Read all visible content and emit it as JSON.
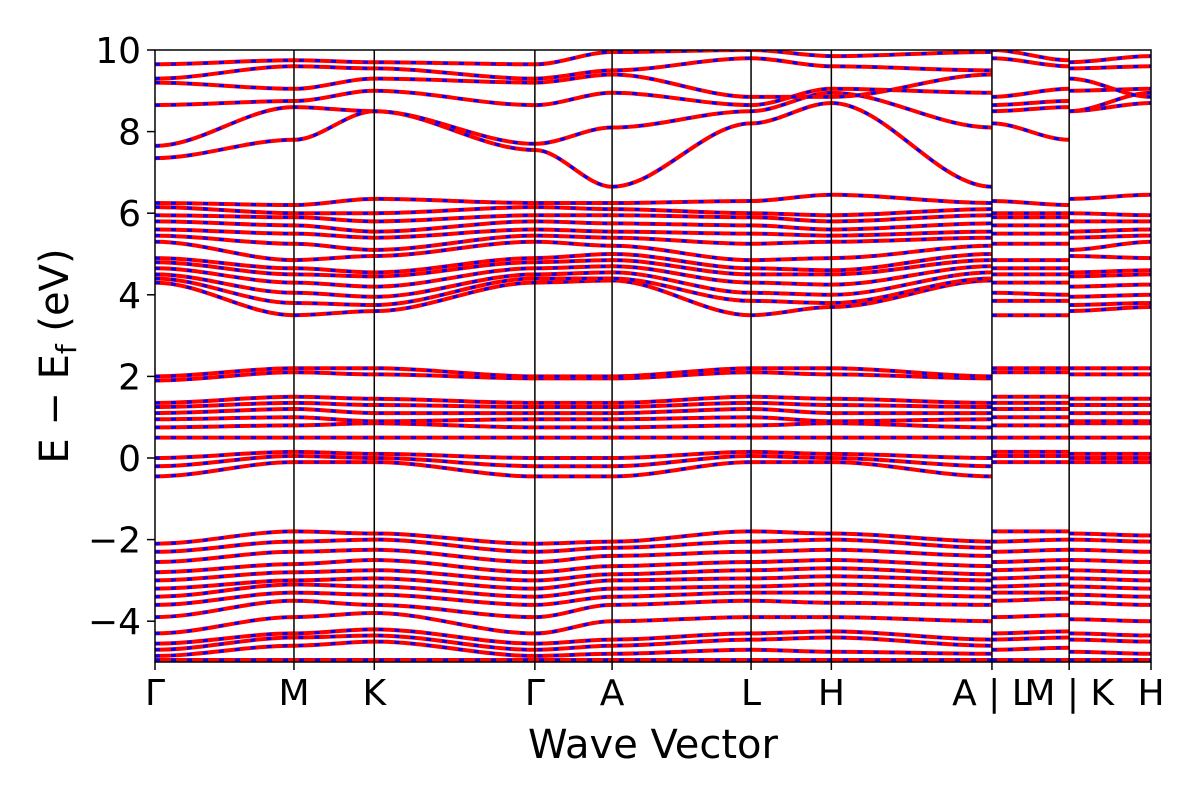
{
  "chart_data": {
    "type": "line",
    "xlabel": "Wave Vector",
    "ylabel": "E − E",
    "ylabel_sub": "f",
    "ylabel_unit": " (eV)",
    "ylim": [
      -5,
      10
    ],
    "yticks": [
      -4,
      -2,
      0,
      2,
      4,
      6,
      8,
      10
    ],
    "ytick_labels": [
      "−4",
      "−2",
      "0",
      "2",
      "4",
      "6",
      "8",
      "10"
    ],
    "xlim": [
      0,
      6.45
    ],
    "kpath_ticks": [
      0,
      0.9,
      1.42,
      2.46,
      2.96,
      3.86,
      4.38,
      5.42,
      5.92,
      6.45
    ],
    "kpath_labels": [
      "Γ",
      "M",
      "K",
      "Γ",
      "A",
      "L",
      "H",
      "A | L",
      "M | K",
      "H"
    ],
    "segment_breaks": [
      5.42,
      5.92
    ],
    "series": [
      {
        "color": "#ff0000",
        "style": "solid"
      },
      {
        "color": "#0000ff",
        "style": "dashed"
      }
    ],
    "bands": {
      "labels": [
        "Γ",
        "M",
        "K",
        "Γ",
        "A",
        "L",
        "H",
        "A",
        "L",
        "M",
        "K",
        "H"
      ],
      "values": [
        [
          -4.95,
          -4.95,
          -4.95,
          -4.95,
          -4.95,
          -4.95,
          -4.95,
          -4.95,
          -4.95,
          -4.95,
          -4.95,
          -4.95
        ],
        [
          -4.85,
          -4.6,
          -4.5,
          -4.85,
          -4.8,
          -4.7,
          -4.75,
          -4.8,
          -4.7,
          -4.65,
          -4.75,
          -4.8
        ],
        [
          -4.7,
          -4.4,
          -4.35,
          -4.7,
          -4.6,
          -4.45,
          -4.4,
          -4.6,
          -4.45,
          -4.4,
          -4.45,
          -4.5
        ],
        [
          -4.55,
          -4.3,
          -4.2,
          -4.55,
          -4.45,
          -4.3,
          -4.25,
          -4.45,
          -4.3,
          -4.25,
          -4.3,
          -4.35
        ],
        [
          -4.3,
          -3.9,
          -3.8,
          -4.3,
          -4.0,
          -3.9,
          -3.9,
          -4.0,
          -3.9,
          -3.85,
          -3.95,
          -4.0
        ],
        [
          -3.9,
          -3.5,
          -3.6,
          -3.9,
          -3.6,
          -3.5,
          -3.55,
          -3.6,
          -3.5,
          -3.45,
          -3.55,
          -3.6
        ],
        [
          -3.6,
          -3.3,
          -3.35,
          -3.6,
          -3.4,
          -3.3,
          -3.3,
          -3.4,
          -3.3,
          -3.3,
          -3.35,
          -3.4
        ],
        [
          -3.4,
          -3.1,
          -3.15,
          -3.4,
          -3.2,
          -3.15,
          -3.1,
          -3.2,
          -3.15,
          -3.1,
          -3.15,
          -3.2
        ],
        [
          -3.2,
          -3.0,
          -2.95,
          -3.2,
          -3.0,
          -2.95,
          -2.9,
          -3.0,
          -2.95,
          -2.9,
          -2.95,
          -3.0
        ],
        [
          -3.0,
          -2.8,
          -2.75,
          -3.0,
          -2.85,
          -2.75,
          -2.7,
          -2.85,
          -2.75,
          -2.7,
          -2.75,
          -2.8
        ],
        [
          -2.8,
          -2.6,
          -2.5,
          -2.8,
          -2.65,
          -2.55,
          -2.5,
          -2.65,
          -2.55,
          -2.5,
          -2.5,
          -2.55
        ],
        [
          -2.55,
          -2.3,
          -2.25,
          -2.55,
          -2.4,
          -2.3,
          -2.25,
          -2.4,
          -2.3,
          -2.25,
          -2.25,
          -2.3
        ],
        [
          -2.3,
          -2.05,
          -2.0,
          -2.3,
          -2.2,
          -2.05,
          -2.0,
          -2.2,
          -2.05,
          -2.0,
          -2.0,
          -2.05
        ],
        [
          -2.1,
          -1.8,
          -1.85,
          -2.1,
          -2.05,
          -1.8,
          -1.85,
          -2.05,
          -1.8,
          -1.8,
          -1.85,
          -1.9
        ],
        [
          -0.45,
          -0.1,
          -0.1,
          -0.45,
          -0.45,
          -0.1,
          -0.1,
          -0.45,
          -0.1,
          -0.1,
          -0.1,
          -0.1
        ],
        [
          -0.2,
          0.05,
          0.0,
          -0.2,
          -0.2,
          0.05,
          0.0,
          -0.2,
          0.05,
          0.05,
          0.0,
          0.0
        ],
        [
          0.0,
          0.15,
          0.1,
          0.0,
          0.0,
          0.15,
          0.1,
          0.0,
          0.15,
          0.15,
          0.1,
          0.1
        ],
        [
          0.5,
          0.5,
          0.5,
          0.5,
          0.5,
          0.5,
          0.5,
          0.5,
          0.5,
          0.5,
          0.5,
          0.5
        ],
        [
          0.75,
          0.8,
          0.85,
          0.75,
          0.75,
          0.8,
          0.85,
          0.75,
          0.8,
          0.8,
          0.85,
          0.85
        ],
        [
          0.95,
          1.0,
          0.9,
          0.95,
          0.95,
          1.0,
          0.9,
          0.95,
          1.0,
          1.0,
          0.9,
          0.9
        ],
        [
          1.1,
          1.2,
          1.1,
          1.1,
          1.1,
          1.2,
          1.1,
          1.1,
          1.2,
          1.2,
          1.1,
          1.1
        ],
        [
          1.25,
          1.35,
          1.3,
          1.25,
          1.25,
          1.35,
          1.3,
          1.25,
          1.35,
          1.35,
          1.3,
          1.3
        ],
        [
          1.35,
          1.5,
          1.45,
          1.35,
          1.35,
          1.5,
          1.45,
          1.35,
          1.5,
          1.5,
          1.45,
          1.45
        ],
        [
          1.9,
          2.1,
          2.05,
          1.95,
          1.95,
          2.1,
          2.05,
          1.95,
          2.1,
          2.1,
          2.05,
          2.05
        ],
        [
          2.0,
          2.2,
          2.2,
          2.0,
          2.0,
          2.2,
          2.2,
          2.0,
          2.2,
          2.2,
          2.2,
          2.2
        ],
        [
          4.3,
          3.5,
          3.6,
          4.3,
          4.35,
          3.5,
          3.7,
          4.35,
          3.5,
          3.5,
          3.6,
          3.7
        ],
        [
          4.4,
          3.8,
          3.75,
          4.4,
          4.4,
          3.85,
          3.8,
          4.4,
          3.85,
          3.85,
          3.75,
          3.8
        ],
        [
          4.5,
          4.05,
          3.95,
          4.5,
          4.55,
          4.05,
          4.0,
          4.55,
          4.05,
          4.0,
          3.95,
          4.0
        ],
        [
          4.65,
          4.3,
          4.2,
          4.65,
          4.7,
          4.3,
          4.25,
          4.7,
          4.3,
          4.3,
          4.2,
          4.25
        ],
        [
          4.8,
          4.5,
          4.45,
          4.8,
          4.85,
          4.5,
          4.5,
          4.85,
          4.5,
          4.5,
          4.45,
          4.5
        ],
        [
          4.9,
          4.65,
          4.55,
          4.9,
          5.0,
          4.65,
          4.6,
          5.0,
          4.65,
          4.65,
          4.55,
          4.6
        ],
        [
          5.3,
          4.85,
          4.95,
          5.3,
          5.2,
          4.85,
          4.9,
          5.2,
          4.85,
          4.85,
          4.95,
          4.9
        ],
        [
          5.45,
          5.25,
          5.1,
          5.45,
          5.4,
          5.25,
          5.3,
          5.4,
          5.25,
          5.25,
          5.1,
          5.3
        ],
        [
          5.6,
          5.5,
          5.4,
          5.6,
          5.55,
          5.5,
          5.45,
          5.55,
          5.5,
          5.5,
          5.4,
          5.45
        ],
        [
          5.8,
          5.7,
          5.55,
          5.8,
          5.75,
          5.7,
          5.6,
          5.75,
          5.7,
          5.7,
          5.55,
          5.6
        ],
        [
          5.95,
          5.9,
          5.8,
          5.95,
          5.95,
          5.9,
          5.8,
          5.95,
          5.9,
          5.9,
          5.8,
          5.8
        ],
        [
          6.15,
          6.0,
          6.0,
          6.15,
          6.1,
          6.0,
          5.95,
          6.1,
          6.0,
          6.0,
          6.0,
          5.95
        ],
        [
          6.25,
          6.2,
          6.35,
          6.25,
          6.25,
          6.3,
          6.45,
          6.25,
          6.3,
          6.2,
          6.35,
          6.45
        ],
        [
          7.35,
          7.8,
          8.5,
          7.55,
          6.65,
          8.2,
          8.7,
          6.65,
          8.2,
          7.8,
          8.5,
          8.7
        ],
        [
          7.65,
          8.6,
          8.5,
          7.7,
          8.1,
          8.5,
          8.95,
          8.1,
          8.5,
          8.6,
          8.5,
          8.95
        ],
        [
          8.65,
          8.75,
          9.0,
          8.65,
          8.95,
          8.65,
          9.05,
          8.95,
          8.65,
          8.75,
          9.0,
          9.05
        ],
        [
          9.2,
          9.05,
          9.3,
          9.2,
          9.4,
          8.85,
          8.85,
          9.4,
          8.85,
          9.05,
          9.3,
          8.85
        ],
        [
          9.3,
          9.6,
          9.55,
          9.3,
          9.5,
          9.8,
          9.6,
          9.5,
          9.8,
          9.6,
          9.55,
          9.6
        ],
        [
          9.65,
          9.75,
          9.7,
          9.65,
          9.95,
          10.0,
          9.85,
          9.95,
          10.0,
          9.75,
          9.7,
          9.85
        ]
      ]
    }
  }
}
